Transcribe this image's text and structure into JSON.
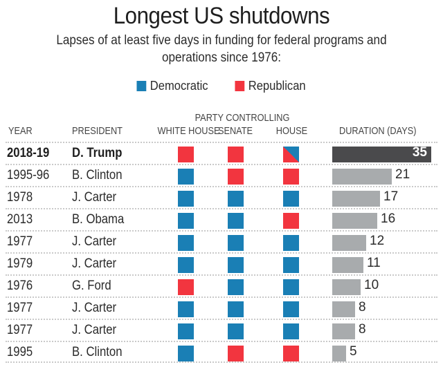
{
  "colors": {
    "democratic": "#1a7fb5",
    "republican": "#f2353f",
    "bar_highlight": "#4a4a4c",
    "bar_default": "#a8abad"
  },
  "header": {
    "title": "Longest US shutdowns",
    "subtitle": "Lapses of at least five days in funding for federal programs and operations since 1976:"
  },
  "legend": [
    {
      "label": "Democratic",
      "party": "D"
    },
    {
      "label": "Republican",
      "party": "R"
    }
  ],
  "columns": {
    "year": "YEAR",
    "president": "PRESIDENT",
    "group": "PARTY CONTROLLING",
    "white_house": "WHITE HOUSE",
    "senate": "SENATE",
    "house": "HOUSE",
    "duration": "DURATION (DAYS)"
  },
  "chart_data": {
    "type": "table",
    "title": "Longest US shutdowns",
    "subtitle": "Lapses of at least five days in funding for federal programs and operations since 1976:",
    "legend": [
      "Democratic",
      "Republican"
    ],
    "columns": [
      "YEAR",
      "PRESIDENT",
      "WHITE HOUSE",
      "SENATE",
      "HOUSE",
      "DURATION (DAYS)"
    ],
    "xlim": [
      0,
      35
    ],
    "rows": [
      {
        "year": "2018-19",
        "president": "D. Trump",
        "white_house": "R",
        "senate": "R",
        "house": "R/D",
        "days": 35,
        "highlight": true
      },
      {
        "year": "1995-96",
        "president": "B. Clinton",
        "white_house": "D",
        "senate": "R",
        "house": "R",
        "days": 21
      },
      {
        "year": "1978",
        "president": "J. Carter",
        "white_house": "D",
        "senate": "D",
        "house": "D",
        "days": 17
      },
      {
        "year": "2013",
        "president": "B. Obama",
        "white_house": "D",
        "senate": "D",
        "house": "R",
        "days": 16
      },
      {
        "year": "1977",
        "president": "J. Carter",
        "white_house": "D",
        "senate": "D",
        "house": "D",
        "days": 12
      },
      {
        "year": "1979",
        "president": "J. Carter",
        "white_house": "D",
        "senate": "D",
        "house": "D",
        "days": 11
      },
      {
        "year": "1976",
        "president": "G. Ford",
        "white_house": "R",
        "senate": "D",
        "house": "D",
        "days": 10
      },
      {
        "year": "1977",
        "president": "J. Carter",
        "white_house": "D",
        "senate": "D",
        "house": "D",
        "days": 8
      },
      {
        "year": "1977",
        "president": "J. Carter",
        "white_house": "D",
        "senate": "D",
        "house": "D",
        "days": 8
      },
      {
        "year": "1995",
        "president": "B. Clinton",
        "white_house": "D",
        "senate": "R",
        "house": "R",
        "days": 5
      }
    ]
  }
}
